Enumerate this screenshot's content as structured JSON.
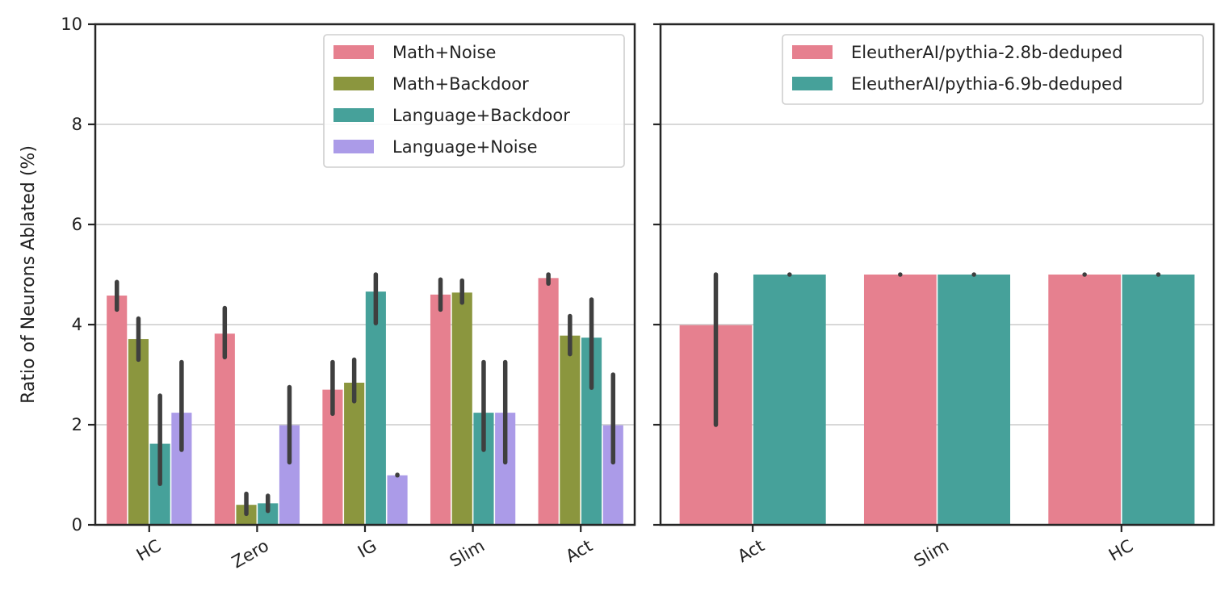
{
  "chart_data": [
    {
      "type": "bar",
      "ylabel": "Ratio of Neurons Ablated (%)",
      "ylim": [
        0,
        10
      ],
      "yticks": [
        0,
        2,
        4,
        6,
        8,
        10
      ],
      "grid": "horizontal",
      "legend_position": "top-right",
      "categories": [
        "HC",
        "Zero",
        "IG",
        "Slim",
        "Act"
      ],
      "series": [
        {
          "name": "Math+Noise",
          "color": "#e6808f",
          "values": [
            4.58,
            3.82,
            2.7,
            4.6,
            4.93
          ],
          "errors": [
            [
              4.3,
              4.85
            ],
            [
              3.35,
              4.33
            ],
            [
              2.22,
              3.25
            ],
            [
              4.3,
              4.9
            ],
            [
              4.82,
              5.0
            ]
          ]
        },
        {
          "name": "Math+Backdoor",
          "color": "#8b963e",
          "values": [
            3.71,
            0.4,
            2.84,
            4.64,
            3.78
          ],
          "errors": [
            [
              3.3,
              4.12
            ],
            [
              0.22,
              0.62
            ],
            [
              2.47,
              3.3
            ],
            [
              4.44,
              4.88
            ],
            [
              3.41,
              4.17
            ]
          ]
        },
        {
          "name": "Language+Backdoor",
          "color": "#46a19a",
          "values": [
            1.62,
            0.43,
            4.66,
            2.24,
            3.74
          ],
          "errors": [
            [
              0.82,
              2.58
            ],
            [
              0.28,
              0.58
            ],
            [
              4.03,
              5.0
            ],
            [
              1.5,
              3.25
            ],
            [
              2.74,
              4.5
            ]
          ]
        },
        {
          "name": "Language+Noise",
          "color": "#ab9be8",
          "values": [
            2.24,
            1.99,
            0.99,
            2.24,
            1.99
          ],
          "errors": [
            [
              1.5,
              3.25
            ],
            [
              1.25,
              2.75
            ],
            [
              0.99,
              1.0
            ],
            [
              1.25,
              3.25
            ],
            [
              1.25,
              3.0
            ]
          ]
        }
      ]
    },
    {
      "type": "bar",
      "ylim": [
        0,
        10
      ],
      "yticks": [
        0,
        2,
        4,
        6,
        8,
        10
      ],
      "grid": "horizontal",
      "legend_position": "top-right",
      "categories": [
        "Act",
        "Slim",
        "HC"
      ],
      "series": [
        {
          "name": "EleutherAI/pythia-2.8b-deduped",
          "color": "#e6808f",
          "values": [
            3.99,
            5.0,
            5.0
          ],
          "errors": [
            [
              2.0,
              5.0
            ],
            [
              5.0,
              5.0
            ],
            [
              5.0,
              5.0
            ]
          ]
        },
        {
          "name": "EleutherAI/pythia-6.9b-deduped",
          "color": "#46a19a",
          "values": [
            5.0,
            5.0,
            5.0
          ],
          "errors": [
            [
              5.0,
              5.0
            ],
            [
              5.0,
              5.0
            ],
            [
              5.0,
              5.0
            ]
          ]
        }
      ]
    }
  ]
}
